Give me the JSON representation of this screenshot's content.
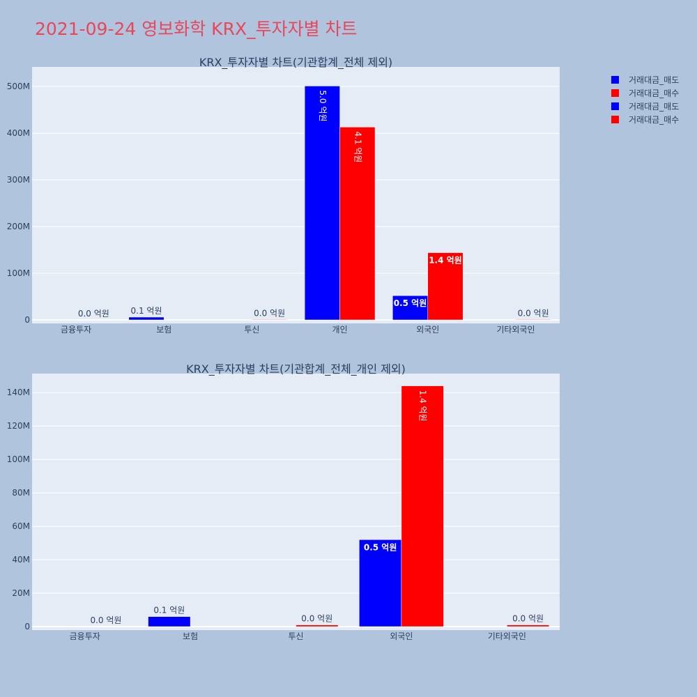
{
  "page": {
    "title": "2021-09-24 영보화학 KRX_투자자별 차트",
    "background": "#b0c4de",
    "plot_background": "#e5ecf6",
    "title_color": "#e8475a"
  },
  "legend": {
    "placement": "top-right",
    "items": [
      {
        "label": "거래대금_매도",
        "color": "#0000ff"
      },
      {
        "label": "거래대금_매수",
        "color": "#ff0000"
      },
      {
        "label": "거래대금_매도",
        "color": "#0000ff"
      },
      {
        "label": "거래대금_매수",
        "color": "#ff0000"
      }
    ]
  },
  "chart_data": [
    {
      "type": "bar",
      "title": "KRX_투자자별 차트(기관합계_전체 제외)",
      "categories": [
        "금융투자",
        "보험",
        "투신",
        "개인",
        "외국인",
        "기타외국인"
      ],
      "ylim": [
        0,
        530000000
      ],
      "yticks": [
        0,
        100000000,
        200000000,
        300000000,
        400000000,
        500000000
      ],
      "ytick_labels": [
        "0",
        "100M",
        "200M",
        "300M",
        "400M",
        "500M"
      ],
      "grid": true,
      "series": [
        {
          "name": "거래대금_매도",
          "color": "#0000ff",
          "values": [
            0,
            6000000,
            0,
            501000000,
            52000000,
            0
          ],
          "labels": [
            "",
            "0.1 억원",
            "",
            "5.0 억원",
            "0.5 억원",
            ""
          ]
        },
        {
          "name": "거래대금_매수",
          "color": "#ff0000",
          "values": [
            0,
            0,
            1000000,
            413000000,
            144000000,
            1000000
          ],
          "labels": [
            "0.0 억원",
            "",
            "0.0 억원",
            "4.1 억원",
            "1.4 억원",
            "0.0 억원"
          ]
        }
      ]
    },
    {
      "type": "bar",
      "title": "KRX_투자자별 차트(기관합계_전체_개인 제외)",
      "categories": [
        "금융투자",
        "보험",
        "투신",
        "외국인",
        "기타외국인"
      ],
      "ylim": [
        0,
        148000000
      ],
      "yticks": [
        0,
        20000000,
        40000000,
        60000000,
        80000000,
        100000000,
        120000000,
        140000000
      ],
      "ytick_labels": [
        "0",
        "20M",
        "40M",
        "60M",
        "80M",
        "100M",
        "120M",
        "140M"
      ],
      "grid": true,
      "series": [
        {
          "name": "거래대금_매도",
          "color": "#0000ff",
          "values": [
            0,
            6000000,
            0,
            52000000,
            0
          ],
          "labels": [
            "",
            "0.1 억원",
            "",
            "0.5 억원",
            ""
          ]
        },
        {
          "name": "거래대금_매수",
          "color": "#ff0000",
          "values": [
            0,
            0,
            1000000,
            144000000,
            1000000
          ],
          "labels": [
            "0.0 억원",
            "",
            "0.0 억원",
            "1.4 억원",
            "0.0 억원"
          ]
        }
      ]
    }
  ]
}
